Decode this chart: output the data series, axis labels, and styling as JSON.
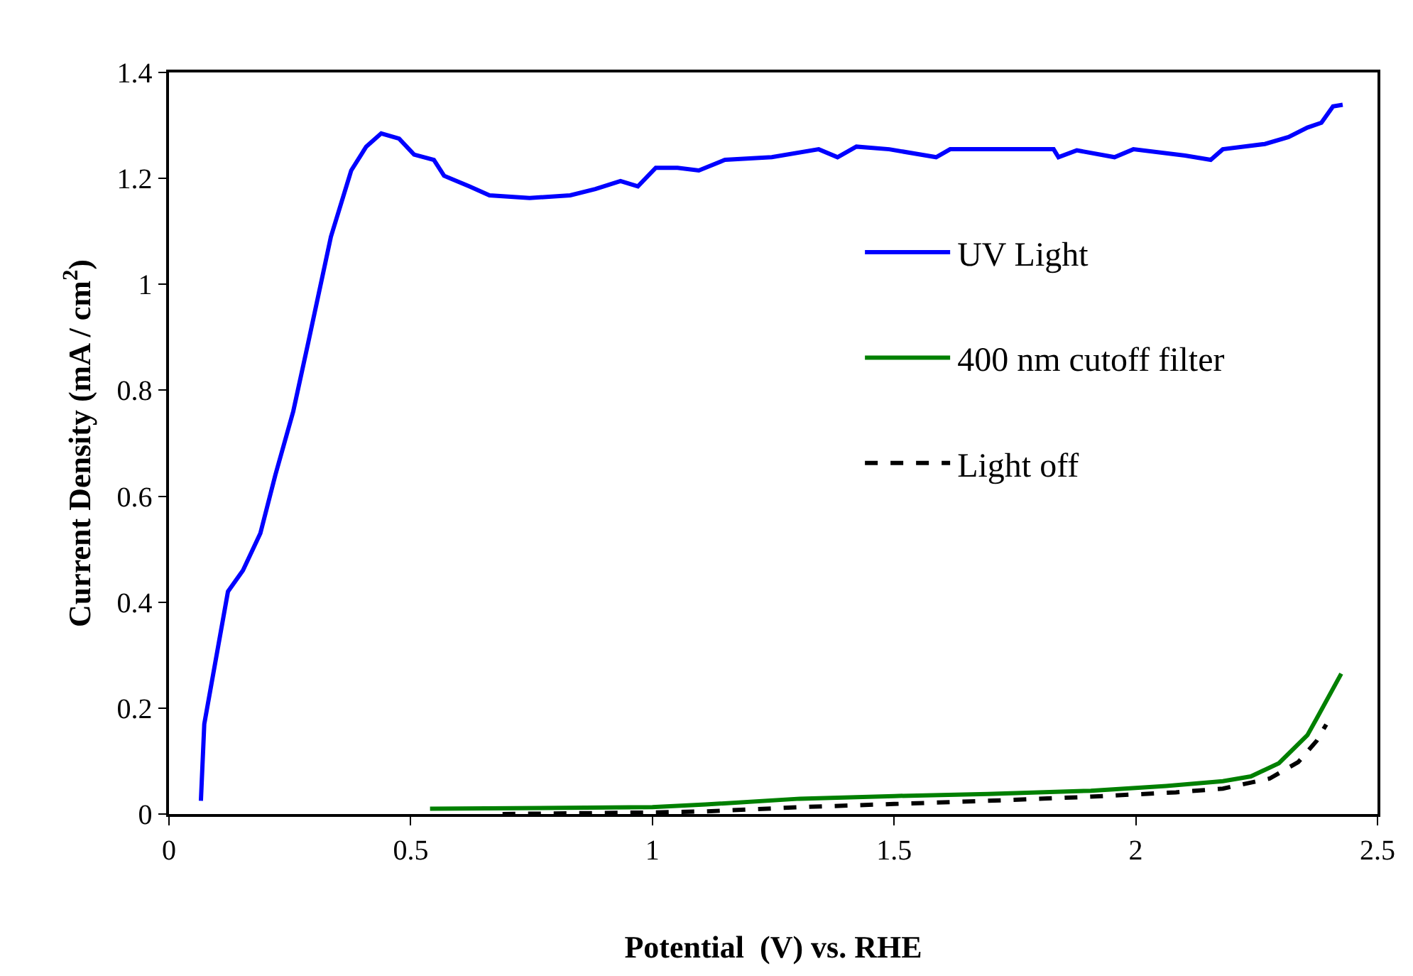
{
  "chart_data": {
    "type": "line",
    "xlabel": "Potential  (V) vs. RHE",
    "ylabel": "Current Density (mA / cm$^{2}$)",
    "xlim": [
      0,
      2.5
    ],
    "xticks": [
      0,
      0.5,
      1,
      1.5,
      2,
      2.5
    ],
    "ylim": [
      0,
      1.4
    ],
    "yticks": [
      0,
      0.2,
      0.4,
      0.6,
      0.8,
      1,
      1.2,
      1.4
    ],
    "legend": "right",
    "marker": "none",
    "series": [
      {
        "name": "UV Light",
        "color": "#0000ff",
        "line_style": "solid",
        "x": [
          0.066,
          0.073,
          0.122,
          0.153,
          0.189,
          0.22,
          0.257,
          0.288,
          0.335,
          0.377,
          0.408,
          0.439,
          0.476,
          0.507,
          0.548,
          0.569,
          0.621,
          0.663,
          0.746,
          0.83,
          0.882,
          0.934,
          0.97,
          1.007,
          1.052,
          1.096,
          1.15,
          1.247,
          1.344,
          1.383,
          1.422,
          1.49,
          1.587,
          1.616,
          1.733,
          1.83,
          1.84,
          1.878,
          1.956,
          1.995,
          2.102,
          2.155,
          2.18,
          2.267,
          2.316,
          2.355,
          2.384,
          2.408,
          2.428
        ],
        "values": [
          0.025,
          0.17,
          0.42,
          0.46,
          0.53,
          0.64,
          0.76,
          0.89,
          1.09,
          1.215,
          1.26,
          1.285,
          1.275,
          1.245,
          1.235,
          1.205,
          1.185,
          1.168,
          1.163,
          1.168,
          1.18,
          1.195,
          1.185,
          1.22,
          1.22,
          1.215,
          1.235,
          1.24,
          1.255,
          1.24,
          1.26,
          1.255,
          1.24,
          1.255,
          1.255,
          1.255,
          1.24,
          1.253,
          1.24,
          1.255,
          1.243,
          1.235,
          1.255,
          1.265,
          1.278,
          1.296,
          1.305,
          1.336,
          1.339
        ]
      },
      {
        "name": "400 nm cutoff filter",
        "color": "#008000",
        "line_style": "solid",
        "x": [
          0.54,
          1.0,
          1.11,
          1.305,
          1.5,
          1.694,
          1.907,
          2.063,
          2.18,
          2.238,
          2.296,
          2.355,
          2.374,
          2.425
        ],
        "values": [
          0.01,
          0.013,
          0.018,
          0.029,
          0.034,
          0.038,
          0.044,
          0.053,
          0.062,
          0.071,
          0.096,
          0.149,
          0.18,
          0.265
        ]
      },
      {
        "name": "Light off",
        "color": "#000000",
        "line_style": "dashed",
        "x": [
          0.69,
          1.0,
          1.11,
          1.305,
          1.5,
          1.694,
          1.889,
          2.083,
          2.18,
          2.277,
          2.336,
          2.374,
          2.394
        ],
        "values": [
          0.0,
          0.003,
          0.005,
          0.013,
          0.019,
          0.025,
          0.032,
          0.041,
          0.048,
          0.067,
          0.098,
          0.138,
          0.169
        ]
      }
    ]
  }
}
